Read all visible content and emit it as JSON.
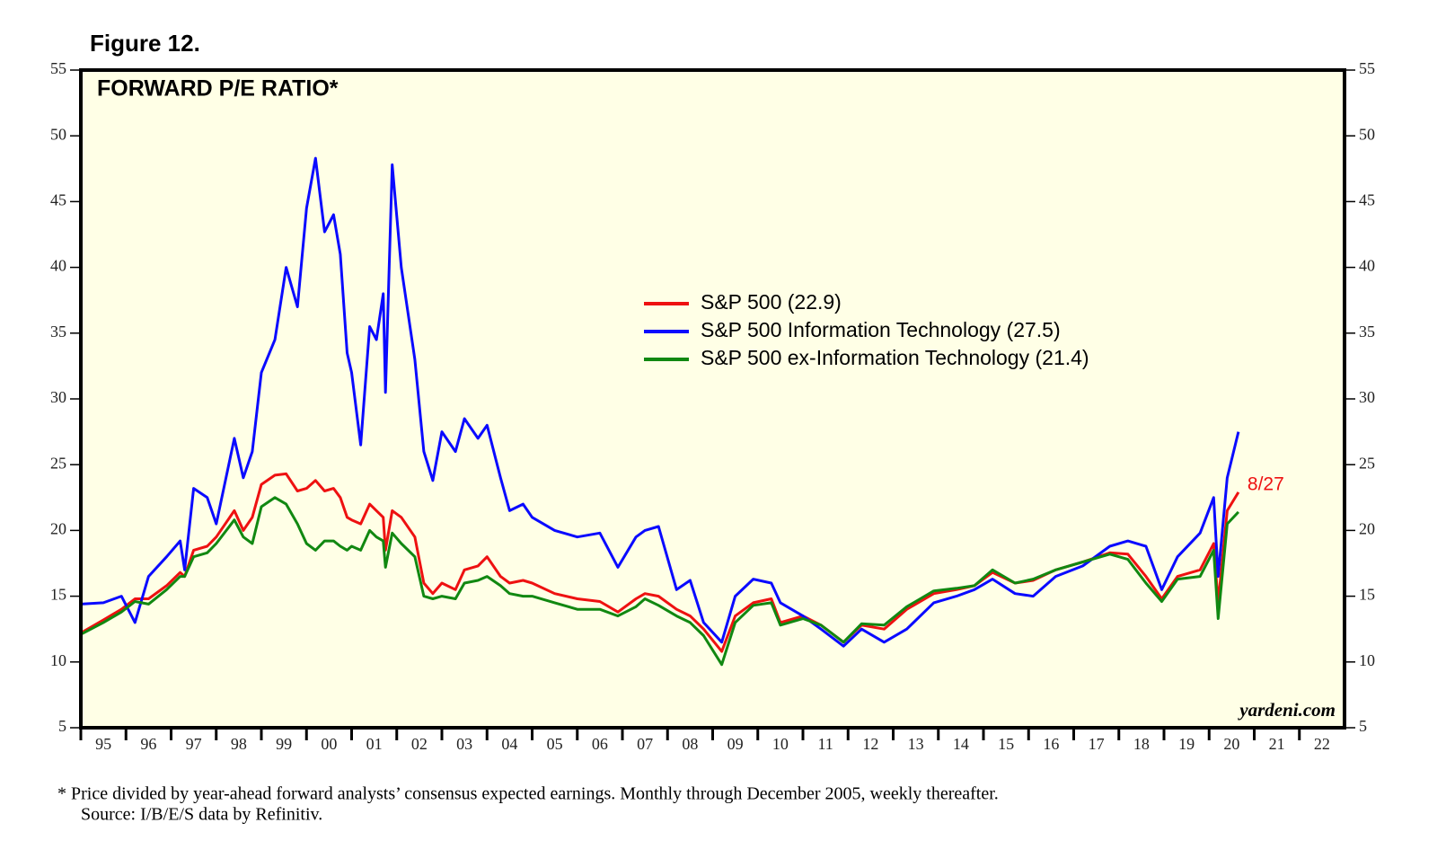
{
  "chart_data": {
    "type": "line",
    "figure_label": "Figure 12.",
    "title": "FORWARD P/E RATIO*",
    "watermark": "yardeni.com",
    "annotation": "8/27",
    "footnotes": [
      "*  Price divided by year-ahead forward analysts’ consensus expected earnings. Monthly through December 2005, weekly thereafter.",
      "Source: I/B/E/S data by Refinitiv."
    ],
    "x": [
      1995.0,
      1995.5,
      1995.9,
      1996.2,
      1996.5,
      1996.9,
      1997.2,
      1997.3,
      1997.5,
      1997.8,
      1998.0,
      1998.4,
      1998.6,
      1998.8,
      1999.0,
      1999.3,
      1999.55,
      1999.8,
      2000.0,
      2000.2,
      2000.4,
      2000.6,
      2000.75,
      2000.9,
      2001.0,
      2001.2,
      2001.4,
      2001.55,
      2001.7,
      2001.75,
      2001.9,
      2002.1,
      2002.4,
      2002.6,
      2002.8,
      2003.0,
      2003.3,
      2003.5,
      2003.8,
      2004.0,
      2004.3,
      2004.5,
      2004.8,
      2005.0,
      2005.5,
      2006.0,
      2006.5,
      2006.9,
      2007.3,
      2007.5,
      2007.8,
      2008.2,
      2008.5,
      2008.8,
      2009.2,
      2009.5,
      2009.9,
      2010.3,
      2010.5,
      2011.0,
      2011.4,
      2011.9,
      2012.3,
      2012.8,
      2013.3,
      2013.9,
      2014.4,
      2014.8,
      2015.2,
      2015.7,
      2016.1,
      2016.6,
      2017.2,
      2017.8,
      2018.2,
      2018.6,
      2018.95,
      2019.3,
      2019.8,
      2020.1,
      2020.2,
      2020.4,
      2020.65
    ],
    "series": [
      {
        "name": "S&P 500 (22.9)",
        "color": "#ee1111",
        "values": [
          12.2,
          13.2,
          14.0,
          14.8,
          14.8,
          15.8,
          16.8,
          16.5,
          18.5,
          18.8,
          19.5,
          21.5,
          20.0,
          21.0,
          23.5,
          24.2,
          24.3,
          23.0,
          23.2,
          23.8,
          23.0,
          23.2,
          22.5,
          21.0,
          20.8,
          20.5,
          22.0,
          21.5,
          21.0,
          18.5,
          21.5,
          21.0,
          19.5,
          16.0,
          15.2,
          16.0,
          15.5,
          17.0,
          17.3,
          18.0,
          16.5,
          16.0,
          16.2,
          16.0,
          15.2,
          14.8,
          14.6,
          13.8,
          14.8,
          15.2,
          15.0,
          14.0,
          13.5,
          12.5,
          10.8,
          13.5,
          14.5,
          14.8,
          13.0,
          13.5,
          12.8,
          11.5,
          12.8,
          12.5,
          14.0,
          15.2,
          15.5,
          15.8,
          16.8,
          16.0,
          16.2,
          17.0,
          17.6,
          18.3,
          18.2,
          16.5,
          14.8,
          16.5,
          17.0,
          19.0,
          14.5,
          21.5,
          22.9
        ]
      },
      {
        "name": "S&P 500 Information Technology (27.5)",
        "color": "#0a0aff",
        "values": [
          14.4,
          14.5,
          15.0,
          13.0,
          16.5,
          18.0,
          19.2,
          17.0,
          23.2,
          22.5,
          20.5,
          27.0,
          24.0,
          26.0,
          32.0,
          34.5,
          40.0,
          37.0,
          44.5,
          48.3,
          42.7,
          44.0,
          41.0,
          33.5,
          32.0,
          26.5,
          35.5,
          34.5,
          38.0,
          30.5,
          47.8,
          40.0,
          33.0,
          26.0,
          23.8,
          27.5,
          26.0,
          28.5,
          27.0,
          28.0,
          24.0,
          21.5,
          22.0,
          21.0,
          20.0,
          19.5,
          19.8,
          17.2,
          19.5,
          20.0,
          20.3,
          15.5,
          16.2,
          13.0,
          11.5,
          15.0,
          16.3,
          16.0,
          14.5,
          13.5,
          12.5,
          11.2,
          12.5,
          11.5,
          12.5,
          14.5,
          15.0,
          15.5,
          16.3,
          15.2,
          15.0,
          16.5,
          17.3,
          18.8,
          19.2,
          18.8,
          15.5,
          18.0,
          19.8,
          22.5,
          16.5,
          24.0,
          27.5
        ]
      },
      {
        "name": "S&P 500 ex-Information Technology (21.4)",
        "color": "#118811",
        "values": [
          12.1,
          13.0,
          13.8,
          14.6,
          14.4,
          15.5,
          16.5,
          16.5,
          18.0,
          18.3,
          19.0,
          20.8,
          19.5,
          19.0,
          21.8,
          22.5,
          22.0,
          20.5,
          19.0,
          18.5,
          19.2,
          19.2,
          18.8,
          18.5,
          18.8,
          18.5,
          20.0,
          19.5,
          19.2,
          17.2,
          19.8,
          19.0,
          18.0,
          15.0,
          14.8,
          15.0,
          14.8,
          16.0,
          16.2,
          16.5,
          15.8,
          15.2,
          15.0,
          15.0,
          14.5,
          14.0,
          14.0,
          13.5,
          14.2,
          14.8,
          14.3,
          13.5,
          13.0,
          12.0,
          9.8,
          13.0,
          14.3,
          14.5,
          12.8,
          13.3,
          12.8,
          11.5,
          12.9,
          12.8,
          14.2,
          15.4,
          15.6,
          15.8,
          17.0,
          16.0,
          16.3,
          17.0,
          17.6,
          18.2,
          17.8,
          16.0,
          14.6,
          16.3,
          16.5,
          18.5,
          13.3,
          20.5,
          21.4
        ]
      }
    ],
    "xlim": [
      1995,
      2023
    ],
    "xticks": [
      {
        "value": 1995,
        "label": "95"
      },
      {
        "value": 1996,
        "label": "96"
      },
      {
        "value": 1997,
        "label": "97"
      },
      {
        "value": 1998,
        "label": "98"
      },
      {
        "value": 1999,
        "label": "99"
      },
      {
        "value": 2000,
        "label": "00"
      },
      {
        "value": 2001,
        "label": "01"
      },
      {
        "value": 2002,
        "label": "02"
      },
      {
        "value": 2003,
        "label": "03"
      },
      {
        "value": 2004,
        "label": "04"
      },
      {
        "value": 2005,
        "label": "05"
      },
      {
        "value": 2006,
        "label": "06"
      },
      {
        "value": 2007,
        "label": "07"
      },
      {
        "value": 2008,
        "label": "08"
      },
      {
        "value": 2009,
        "label": "09"
      },
      {
        "value": 2010,
        "label": "10"
      },
      {
        "value": 2011,
        "label": "11"
      },
      {
        "value": 2012,
        "label": "12"
      },
      {
        "value": 2013,
        "label": "13"
      },
      {
        "value": 2014,
        "label": "14"
      },
      {
        "value": 2015,
        "label": "15"
      },
      {
        "value": 2016,
        "label": "16"
      },
      {
        "value": 2017,
        "label": "17"
      },
      {
        "value": 2018,
        "label": "18"
      },
      {
        "value": 2019,
        "label": "19"
      },
      {
        "value": 2020,
        "label": "20"
      },
      {
        "value": 2021,
        "label": "21"
      },
      {
        "value": 2022,
        "label": "22"
      }
    ],
    "ylim": [
      5,
      55
    ],
    "yticks": [
      5,
      10,
      15,
      20,
      25,
      30,
      35,
      40,
      45,
      50,
      55
    ],
    "background": "#ffffe6"
  }
}
